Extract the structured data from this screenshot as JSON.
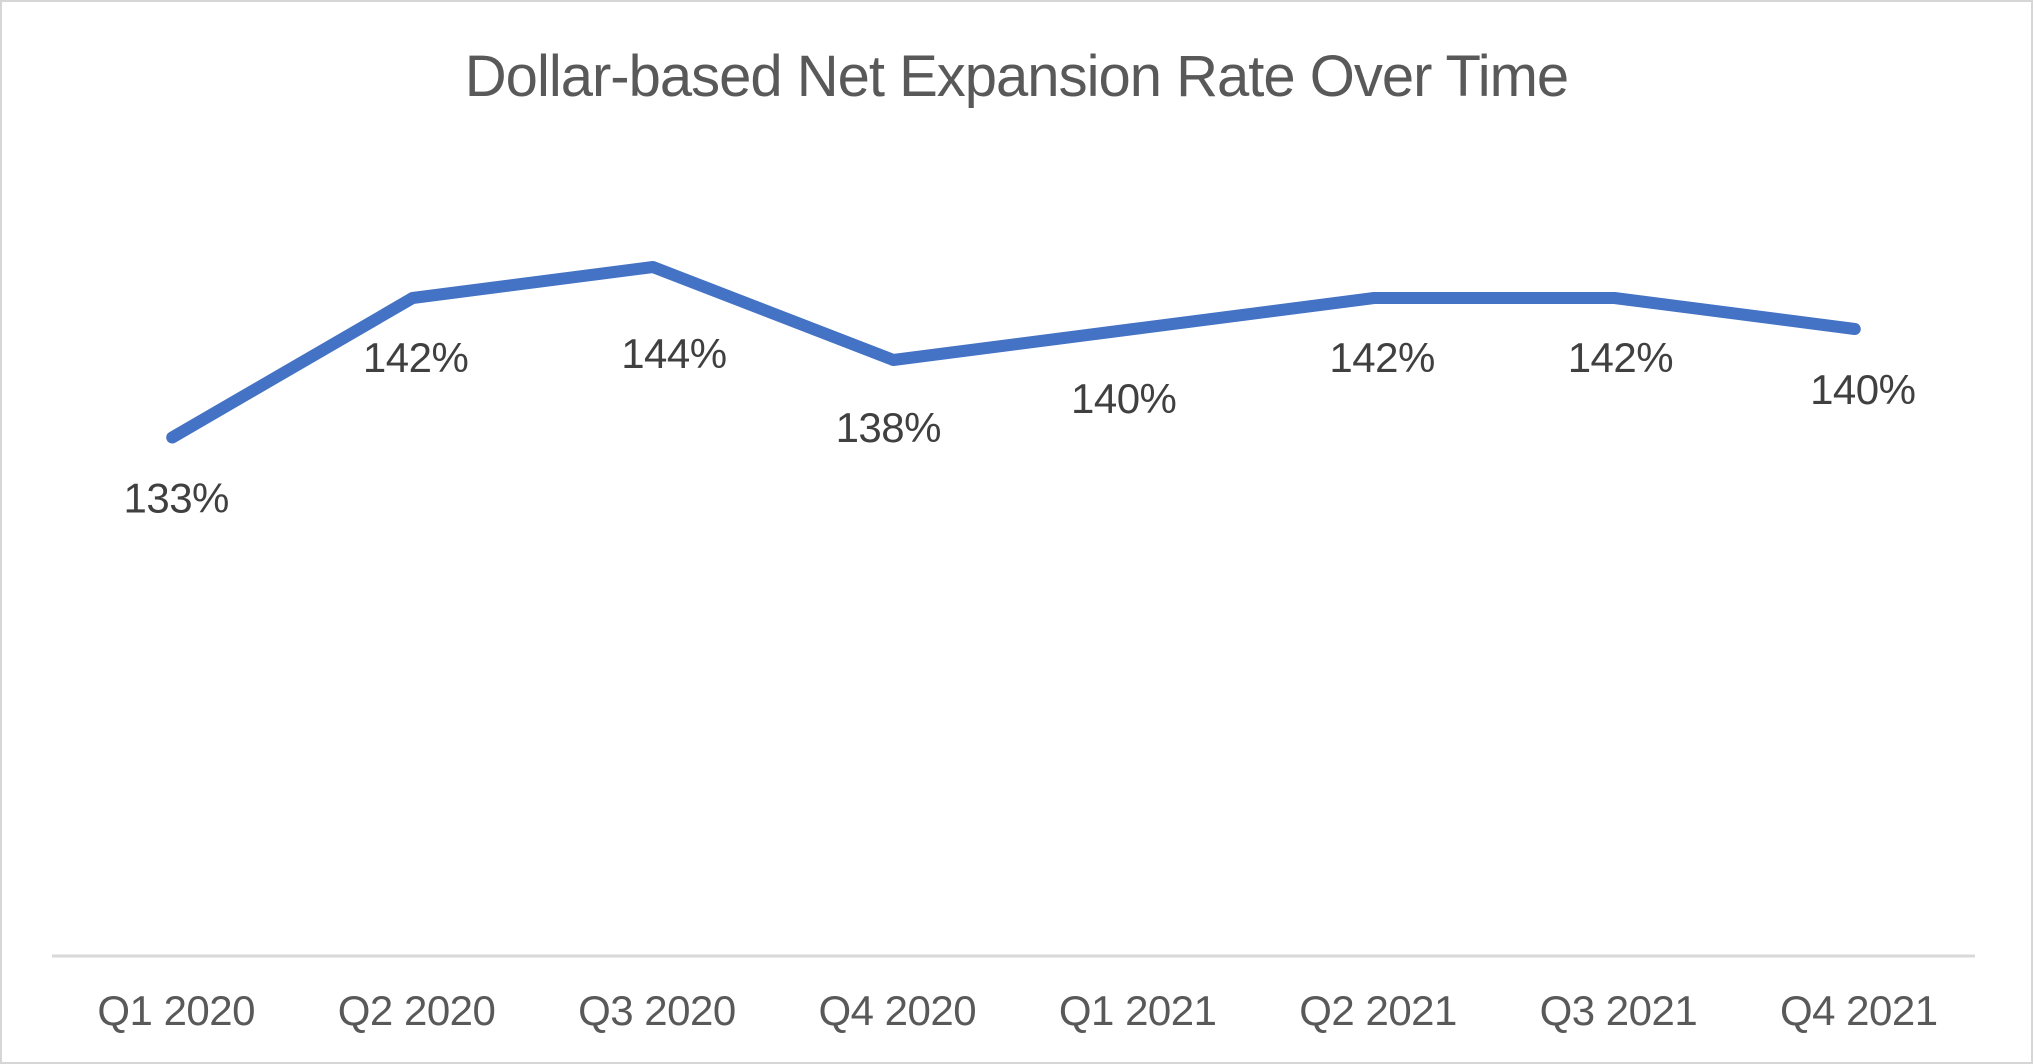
{
  "chart_data": {
    "type": "line",
    "title": "Dollar-based Net Expansion Rate Over Time",
    "categories": [
      "Q1 2020",
      "Q2 2020",
      "Q3 2020",
      "Q4 2020",
      "Q1 2021",
      "Q2 2021",
      "Q3 2021",
      "Q4 2021"
    ],
    "values": [
      133,
      142,
      144,
      138,
      140,
      142,
      142,
      140
    ],
    "data_labels": [
      "133%",
      "142%",
      "144%",
      "138%",
      "140%",
      "142%",
      "142%",
      "140%"
    ],
    "xlabel": "",
    "ylabel": "",
    "ylim": [
      100,
      150
    ],
    "grid": false,
    "legend": false,
    "y_axis_visible": false,
    "data_label_position": "below",
    "colors": {
      "line": "#4472C4",
      "axis_line": "#D9D9D9",
      "title_text": "#595959",
      "axis_text": "#595959",
      "data_label_text": "#404040",
      "canvas_border": "#D6D6D6",
      "background": "#FFFFFF"
    }
  }
}
